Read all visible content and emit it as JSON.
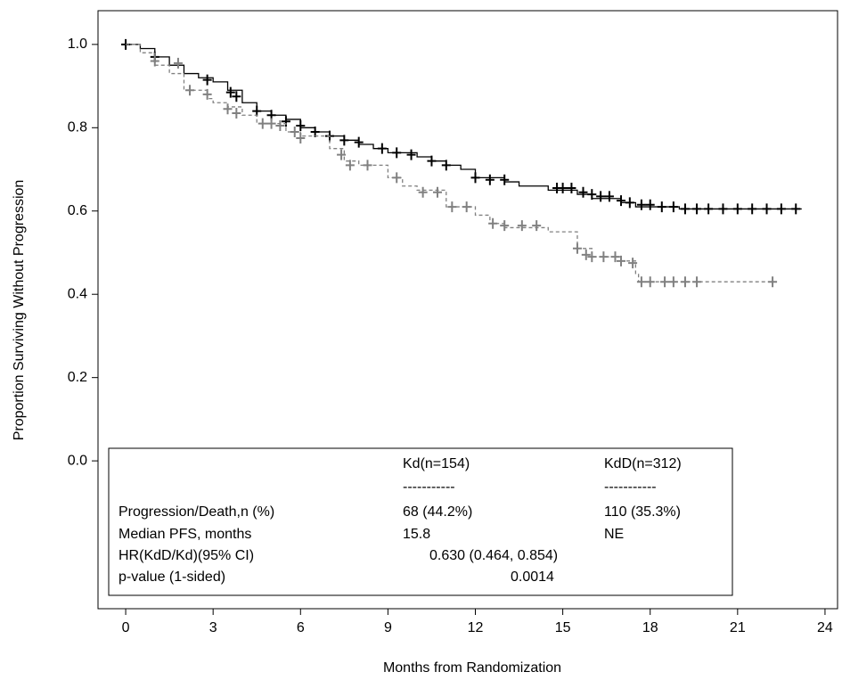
{
  "chart_data": {
    "type": "kaplan-meier",
    "x_label": "Months from Randomization",
    "y_label": "Proportion Surviving Without Progression",
    "xlim": [
      -0.95,
      24.43
    ],
    "ylim": [
      -0.355,
      1.081
    ],
    "xticks": [
      0,
      3,
      6,
      9,
      12,
      15,
      18,
      21,
      24
    ],
    "yticks": [
      {
        "value": 0,
        "label": "0.0"
      },
      0.2,
      0.4,
      0.6,
      0.8,
      {
        "value": 1,
        "label": "1.0"
      }
    ],
    "series": [
      {
        "color": "#000000",
        "line_style": "solid",
        "x": [
          0,
          0.5,
          1,
          1.5,
          2,
          2.5,
          3,
          3.5,
          4,
          4.5,
          5,
          5.5,
          6,
          6.5,
          7,
          7.5,
          8,
          8.5,
          9,
          10,
          10.5,
          11,
          11.5,
          12,
          13,
          13.5,
          14.5,
          15.5,
          16,
          17,
          17.5,
          19,
          23.2
        ],
        "values": [
          1.0,
          0.99,
          0.97,
          0.95,
          0.93,
          0.92,
          0.91,
          0.89,
          0.86,
          0.84,
          0.83,
          0.82,
          0.8,
          0.79,
          0.78,
          0.77,
          0.76,
          0.75,
          0.74,
          0.73,
          0.72,
          0.71,
          0.7,
          0.68,
          0.67,
          0.66,
          0.65,
          0.64,
          0.63,
          0.62,
          0.61,
          0.605,
          0.605
        ],
        "censor_x": [
          0,
          1,
          2.8,
          3.6,
          3.8,
          4.5,
          5,
          5.5,
          6,
          6.5,
          7,
          7.5,
          8,
          8.8,
          9.3,
          9.8,
          10.5,
          11,
          12,
          12.5,
          13,
          14.8,
          15,
          15.3,
          15.7,
          16,
          16.3,
          16.6,
          17,
          17.3,
          17.7,
          18,
          18.4,
          18.8,
          19.2,
          19.6,
          20,
          20.5,
          21,
          21.5,
          22,
          22.5,
          23
        ],
        "censor_values": [
          1.0,
          0.97,
          0.915,
          0.885,
          0.875,
          0.84,
          0.83,
          0.815,
          0.805,
          0.79,
          0.78,
          0.77,
          0.765,
          0.75,
          0.74,
          0.735,
          0.72,
          0.71,
          0.68,
          0.675,
          0.675,
          0.655,
          0.655,
          0.655,
          0.645,
          0.64,
          0.635,
          0.635,
          0.625,
          0.62,
          0.615,
          0.615,
          0.61,
          0.61,
          0.605,
          0.605,
          0.605,
          0.605,
          0.605,
          0.605,
          0.605,
          0.605,
          0.605
        ]
      },
      {
        "color": "#808080",
        "line_style": "dashed",
        "x": [
          0,
          0.5,
          1,
          1.5,
          2,
          2.8,
          3,
          3.5,
          4,
          4.5,
          5.5,
          6,
          7,
          7.5,
          8,
          9,
          9.5,
          10,
          11,
          12,
          12.5,
          13,
          14.5,
          15.5,
          16,
          17,
          17.5,
          17.6,
          22.2
        ],
        "values": [
          1.0,
          0.98,
          0.95,
          0.93,
          0.89,
          0.87,
          0.86,
          0.85,
          0.83,
          0.81,
          0.79,
          0.78,
          0.75,
          0.72,
          0.71,
          0.68,
          0.66,
          0.65,
          0.61,
          0.59,
          0.57,
          0.56,
          0.55,
          0.51,
          0.49,
          0.48,
          0.45,
          0.43,
          0.43
        ],
        "censor_x": [
          1,
          1.8,
          2.2,
          2.8,
          3.5,
          3.8,
          4.7,
          5,
          5.3,
          5.8,
          6,
          7.4,
          7.7,
          8.3,
          9.3,
          10.2,
          10.7,
          11.2,
          11.7,
          12.6,
          13,
          13.6,
          14.1,
          15.5,
          15.8,
          16,
          16.4,
          16.8,
          17,
          17.4,
          17.7,
          18,
          18.5,
          18.8,
          19.2,
          19.6,
          22.2
        ],
        "censor_values": [
          0.96,
          0.955,
          0.89,
          0.88,
          0.845,
          0.835,
          0.81,
          0.81,
          0.805,
          0.79,
          0.775,
          0.735,
          0.71,
          0.71,
          0.68,
          0.645,
          0.645,
          0.61,
          0.61,
          0.57,
          0.565,
          0.565,
          0.565,
          0.51,
          0.495,
          0.49,
          0.49,
          0.49,
          0.48,
          0.475,
          0.43,
          0.43,
          0.43,
          0.43,
          0.43,
          0.43,
          0.43
        ]
      }
    ],
    "legend_table": {
      "header": [
        "Kd(n=154)",
        "KdD(n=312)"
      ],
      "divider": [
        "-----------",
        "-----------"
      ],
      "rows": [
        [
          "Progression/Death,n (%)",
          "68 (44.2%)",
          "110 (35.3%)"
        ],
        [
          "Median PFS, months",
          "15.8",
          "NE"
        ],
        [
          "HR(KdD/Kd)(95% CI)",
          "0.630 (0.464, 0.854)"
        ],
        [
          "p-value (1-sided)",
          "0.0014"
        ]
      ]
    }
  }
}
